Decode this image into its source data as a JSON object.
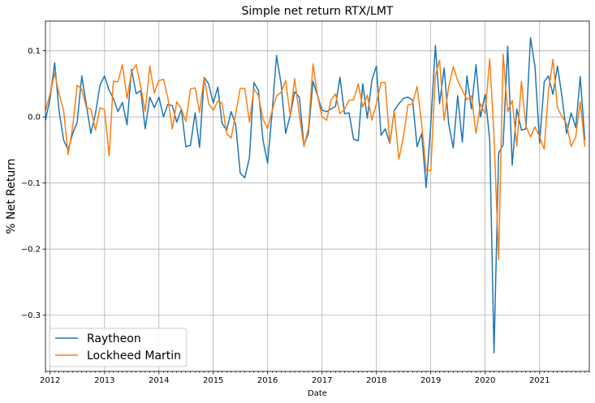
{
  "chart_data": {
    "type": "line",
    "title": "Simple net return RTX/LMT",
    "xlabel": "Date",
    "ylabel": "% Net Return",
    "x_start": "2011-12",
    "x_end": "2021-12",
    "xlim": [
      "2011-12-01",
      "2021-12-01"
    ],
    "ylim": [
      -0.385,
      0.145
    ],
    "grid": true,
    "legend_position": "lower-left",
    "x_tick_labels": [
      "2012",
      "2013",
      "2014",
      "2015",
      "2016",
      "2017",
      "2018",
      "2019",
      "2020",
      "2021"
    ],
    "y_ticks": [
      0.1,
      0.0,
      -0.1,
      -0.2,
      -0.3
    ],
    "y_tick_labels": [
      "0.1",
      "0.0",
      "−0.1",
      "−0.2",
      "−0.3"
    ],
    "series": [
      {
        "name": "Raytheon",
        "color": "#1f77b4",
        "values": [
          -0.005,
          0.028,
          0.082,
          0.01,
          -0.035,
          -0.05,
          -0.025,
          -0.008,
          0.062,
          0.018,
          -0.025,
          0.005,
          0.048,
          0.062,
          0.04,
          0.028,
          0.008,
          0.022,
          -0.012,
          0.072,
          0.035,
          0.04,
          -0.018,
          0.03,
          0.014,
          0.03,
          0.0,
          0.019,
          0.017,
          -0.008,
          0.012,
          -0.045,
          -0.043,
          0.006,
          -0.046,
          0.06,
          0.05,
          0.021,
          0.045,
          -0.01,
          -0.02,
          0.008,
          -0.012,
          -0.085,
          -0.092,
          -0.062,
          0.052,
          0.04,
          -0.035,
          -0.07,
          0.008,
          0.093,
          0.05,
          -0.025,
          0.002,
          0.038,
          0.03,
          -0.043,
          -0.025,
          0.054,
          0.032,
          0.01,
          0.008,
          0.012,
          0.016,
          0.06,
          0.005,
          0.006,
          -0.034,
          -0.036,
          0.05,
          -0.002,
          0.055,
          0.077,
          -0.028,
          -0.018,
          -0.04,
          0.01,
          0.02,
          0.028,
          0.03,
          0.025,
          -0.045,
          -0.025,
          -0.107,
          -0.012,
          0.108,
          0.02,
          0.074,
          -0.01,
          -0.047,
          0.032,
          -0.038,
          0.062,
          0.012,
          0.079,
          0.0,
          0.034,
          -0.035,
          -0.357,
          -0.055,
          -0.042,
          0.107,
          -0.073,
          0.012,
          -0.02,
          -0.018,
          0.12,
          0.076,
          -0.04,
          0.053,
          0.062,
          0.034,
          0.077,
          0.03,
          -0.025,
          0.006,
          -0.016,
          0.061,
          -0.035
        ]
      },
      {
        "name": "Lockheed Martin",
        "color": "#ff7f0e",
        "values": [
          0.01,
          0.035,
          0.066,
          0.035,
          0.01,
          -0.057,
          -0.015,
          0.048,
          0.042,
          0.014,
          0.012,
          -0.02,
          0.014,
          0.011,
          -0.059,
          0.054,
          0.053,
          0.079,
          0.028,
          0.068,
          0.079,
          0.046,
          0.008,
          0.077,
          0.036,
          0.055,
          0.057,
          0.03,
          -0.018,
          0.023,
          0.012,
          -0.007,
          0.042,
          0.044,
          0.007,
          0.06,
          0.02,
          0.01,
          0.024,
          0.021,
          -0.025,
          -0.032,
          0.005,
          0.043,
          0.043,
          -0.008,
          0.042,
          0.032,
          -0.003,
          -0.018,
          0.01,
          0.032,
          0.037,
          0.055,
          0.002,
          0.058,
          0.003,
          -0.045,
          -0.018,
          0.08,
          0.032,
          0.0,
          -0.005,
          0.025,
          0.035,
          0.005,
          0.012,
          0.025,
          0.026,
          0.05,
          0.015,
          0.033,
          -0.005,
          0.02,
          0.052,
          0.052,
          -0.04,
          0.008,
          -0.064,
          -0.03,
          0.018,
          0.02,
          0.046,
          -0.01,
          -0.082,
          -0.081,
          0.062,
          0.086,
          -0.005,
          0.045,
          0.076,
          0.055,
          0.04,
          0.026,
          0.032,
          -0.025,
          0.02,
          0.005,
          0.088,
          -0.03,
          -0.216,
          0.095,
          0.008,
          0.025,
          -0.044,
          0.054,
          -0.014,
          -0.03,
          -0.015,
          -0.03,
          -0.049,
          0.038,
          0.087,
          0.014,
          0.0,
          -0.01,
          -0.045,
          -0.03,
          0.023,
          -0.045
        ]
      }
    ]
  }
}
